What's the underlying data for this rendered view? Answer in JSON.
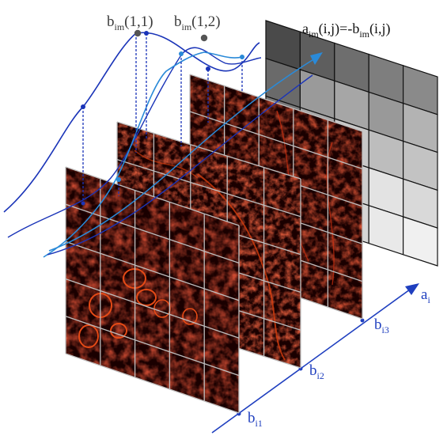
{
  "labels": {
    "b11": {
      "base": "b",
      "sub": "im",
      "arg": "(1,1)"
    },
    "b12": {
      "base": "b",
      "sub": "im",
      "arg": "(1,2)"
    },
    "aim": {
      "base": "a",
      "sub": "im",
      "arg": "(i,j)=-",
      "base2": "b",
      "sub2": "im",
      "arg2": "(i,j)"
    },
    "ai": {
      "base": "a",
      "sub": "i"
    },
    "bi1": {
      "base": "b",
      "sub": "i1"
    },
    "bi2": {
      "base": "b",
      "sub": "i2"
    },
    "bi3": {
      "base": "b",
      "sub": "i3"
    }
  },
  "grid": {
    "rows": 5,
    "cols": 5
  },
  "gray_matrix": [
    [
      "#4a4a4a",
      "#5e5e5e",
      "#6e6e6e",
      "#7e7e7e",
      "#8a8a8a"
    ],
    [
      "#6a6a6a",
      "#9a9a9a",
      "#a6a6a6",
      "#999999",
      "#b3b3b3"
    ],
    [
      "#7a7a7a",
      "#a9a9a9",
      "#c8c8c8",
      "#bdbdbd",
      "#c3c3c3"
    ],
    [
      "#8f8f8f",
      "#b9b9b9",
      "#cecece",
      "#e3e3e3",
      "#d9d9d9"
    ],
    [
      "#9a9a9a",
      "#c2c2c2",
      "#d6d6d6",
      "#e9e9e9",
      "#f0f0f0"
    ]
  ],
  "colors": {
    "axis_blue": "#1f3fbf",
    "curve_dark": "#1a34b8",
    "curve_light": "#2a8ad8",
    "tissue_dark": "#1a0000",
    "tissue_red": "#c41a0a",
    "point_gray": "#555555"
  }
}
